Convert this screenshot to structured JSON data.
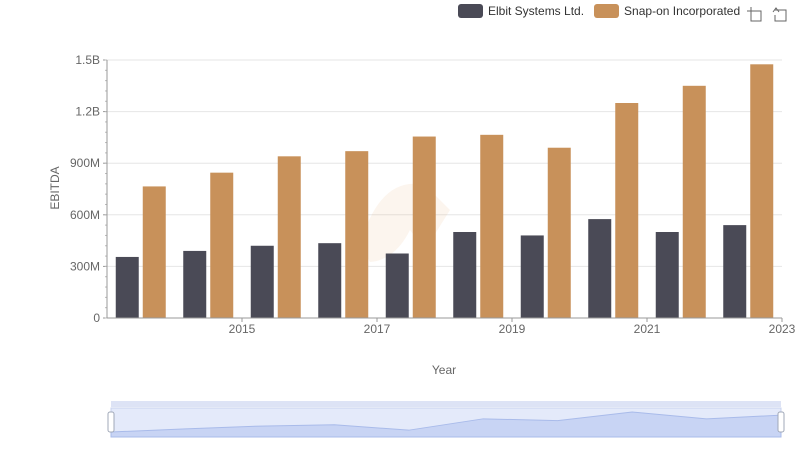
{
  "legend": {
    "items": [
      {
        "label": "Elbit Systems Ltd.",
        "color": "#4a4a56"
      },
      {
        "label": "Snap-on Incorporated",
        "color": "#c8915a"
      }
    ]
  },
  "toolbox": {
    "icons": [
      "zoom-icon",
      "restore-icon"
    ]
  },
  "chart_data": {
    "type": "bar",
    "x": [
      2014,
      2015,
      2016,
      2017,
      2018,
      2019,
      2020,
      2021,
      2022,
      2023
    ],
    "x_tick_labels": [
      "2015",
      "2017",
      "2019",
      "2021",
      "2023"
    ],
    "xlabel": "Year",
    "ylabel": "EBITDA",
    "ylim": [
      0,
      1500000000
    ],
    "y_tick_labels": [
      "0",
      "300M",
      "600M",
      "900M",
      "1.2B",
      "1.5B"
    ],
    "y_tick_values": [
      0,
      300000000,
      600000000,
      900000000,
      1200000000,
      1500000000
    ],
    "series": [
      {
        "name": "Elbit Systems Ltd.",
        "color": "#4a4a56",
        "values": [
          355000000,
          390000000,
          420000000,
          435000000,
          375000000,
          500000000,
          480000000,
          575000000,
          500000000,
          540000000
        ]
      },
      {
        "name": "Snap-on Incorporated",
        "color": "#c8915a",
        "values": [
          765000000,
          845000000,
          940000000,
          970000000,
          1055000000,
          1065000000,
          990000000,
          1250000000,
          1350000000,
          1475000000
        ]
      }
    ],
    "grid": true,
    "legend_position": "top-right",
    "data_zoom": {
      "range_percent": [
        0,
        100
      ]
    }
  }
}
